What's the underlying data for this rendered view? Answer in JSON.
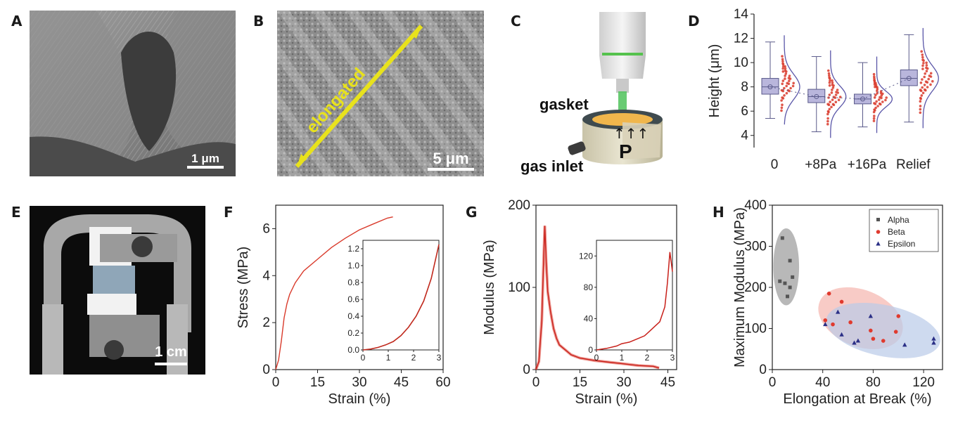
{
  "panels": {
    "A": {
      "letter": "A",
      "scale_bar": "1 μm"
    },
    "B": {
      "letter": "B",
      "scale_bar": "5 μm",
      "annotation": "elongated"
    },
    "C": {
      "letter": "C",
      "labels": {
        "gasket": "gasket",
        "gas_inlet": "gas inlet",
        "pressure": "P"
      }
    },
    "D": {
      "letter": "D"
    },
    "E": {
      "letter": "E",
      "scale_bar": "1 cm"
    },
    "F": {
      "letter": "F"
    },
    "G": {
      "letter": "G"
    },
    "H": {
      "letter": "H"
    }
  },
  "colors": {
    "red": "#d93a2b",
    "box": "#b9b6dc",
    "box_stroke": "#5a5a8a",
    "gray_ellipse": "#9a9a9a",
    "red_ellipse": "#f5b5ae",
    "blue_ellipse": "#b9cbe8",
    "alpha": "#555555",
    "beta": "#e03a2e",
    "epsilon": "#2a2f86"
  },
  "chart_data": [
    {
      "panel": "D",
      "type": "box",
      "ylabel": "Height (μm)",
      "ylim": [
        3,
        14
      ],
      "yticks": [
        "4",
        "6",
        "8",
        "10",
        "12",
        "14"
      ],
      "categories": [
        "0",
        "+8Pa",
        "+16Pa",
        "Relief"
      ],
      "boxes": [
        {
          "q1": 7.4,
          "median": 8.0,
          "q3": 8.7,
          "mean": 8.0,
          "whisker_low": 5.4,
          "whisker_high": 11.7
        },
        {
          "q1": 6.7,
          "median": 7.2,
          "q3": 7.8,
          "mean": 7.2,
          "whisker_low": 4.3,
          "whisker_high": 10.5
        },
        {
          "q1": 6.6,
          "median": 7.0,
          "q3": 7.4,
          "mean": 7.0,
          "whisker_low": 4.7,
          "whisker_high": 10.0
        },
        {
          "q1": 8.1,
          "median": 8.7,
          "q3": 9.4,
          "mean": 8.7,
          "whisker_low": 5.1,
          "whisker_high": 12.3
        }
      ]
    },
    {
      "panel": "F",
      "type": "line",
      "xlabel": "Strain (%)",
      "ylabel": "Stress (MPa)",
      "xlim": [
        0,
        60
      ],
      "ylim": [
        0,
        7
      ],
      "xticks": [
        "0",
        "15",
        "30",
        "45",
        "60"
      ],
      "yticks": [
        "0",
        "2",
        "4",
        "6"
      ],
      "series": [
        {
          "x": [
            0,
            1,
            2,
            3,
            4,
            5,
            7,
            10,
            15,
            20,
            25,
            30,
            35,
            40,
            42
          ],
          "y": [
            0,
            0.4,
            1.2,
            2.2,
            2.8,
            3.2,
            3.7,
            4.2,
            4.7,
            5.2,
            5.6,
            5.95,
            6.2,
            6.45,
            6.5
          ]
        }
      ],
      "inset": {
        "xlim": [
          0,
          3
        ],
        "ylim": [
          0,
          1.3
        ],
        "xticks": [
          "0",
          "1",
          "2",
          "3"
        ],
        "yticks": [
          "0.0",
          "0.2",
          "0.4",
          "0.6",
          "0.8",
          "1.0",
          "1.2"
        ],
        "x": [
          0,
          0.3,
          0.6,
          0.9,
          1.2,
          1.5,
          1.8,
          2.1,
          2.4,
          2.7,
          3.0
        ],
        "y": [
          0,
          0.01,
          0.03,
          0.06,
          0.1,
          0.17,
          0.27,
          0.4,
          0.58,
          0.85,
          1.25
        ]
      }
    },
    {
      "panel": "G",
      "type": "line",
      "xlabel": "Strain (%)",
      "ylabel": "Modulus (MPa)",
      "xlim": [
        0,
        48
      ],
      "ylim": [
        0,
        200
      ],
      "xticks": [
        "0",
        "15",
        "30",
        "45"
      ],
      "yticks": [
        "0",
        "100",
        "200"
      ],
      "series": [
        {
          "x": [
            0,
            1,
            2,
            2.5,
            3,
            3.5,
            4,
            5,
            6,
            7,
            8,
            10,
            12,
            15,
            20,
            25,
            30,
            35,
            40,
            42
          ],
          "y": [
            0,
            10,
            60,
            120,
            175,
            130,
            95,
            70,
            50,
            38,
            30,
            24,
            18,
            14,
            11,
            9,
            7,
            5,
            4,
            2
          ]
        }
      ],
      "inset": {
        "xlim": [
          0,
          3
        ],
        "ylim": [
          0,
          140
        ],
        "xticks": [
          "0",
          "1",
          "2",
          "3"
        ],
        "yticks": [
          "0",
          "40",
          "80",
          "120"
        ],
        "x": [
          0,
          0.4,
          0.8,
          1.0,
          1.3,
          1.6,
          1.9,
          2.1,
          2.3,
          2.5,
          2.7,
          2.8,
          2.9,
          3.0
        ],
        "y": [
          0,
          2,
          5,
          8,
          10,
          14,
          18,
          24,
          30,
          36,
          55,
          85,
          125,
          100
        ]
      }
    },
    {
      "panel": "H",
      "type": "scatter",
      "xlabel": "Elongation at Break (%)",
      "ylabel": "Maximum Modulus (MPa)",
      "xlim": [
        0,
        135
      ],
      "ylim": [
        0,
        400
      ],
      "xticks": [
        "0",
        "40",
        "80",
        "120"
      ],
      "yticks": [
        "0",
        "100",
        "200",
        "300",
        "400"
      ],
      "legend_position": "top-right",
      "series": [
        {
          "name": "Alpha",
          "points": [
            [
              8,
              320
            ],
            [
              14,
              265
            ],
            [
              6,
              215
            ],
            [
              10,
              210
            ],
            [
              16,
              225
            ],
            [
              12,
              178
            ],
            [
              14,
              200
            ]
          ]
        },
        {
          "name": "Beta",
          "points": [
            [
              45,
              185
            ],
            [
              55,
              165
            ],
            [
              42,
              120
            ],
            [
              48,
              110
            ],
            [
              62,
              115
            ],
            [
              78,
              95
            ],
            [
              88,
              70
            ],
            [
              80,
              75
            ],
            [
              100,
              130
            ],
            [
              98,
              92
            ]
          ]
        },
        {
          "name": "Epsilon",
          "points": [
            [
              52,
              140
            ],
            [
              42,
              110
            ],
            [
              55,
              85
            ],
            [
              65,
              65
            ],
            [
              78,
              130
            ],
            [
              105,
              60
            ],
            [
              128,
              65
            ],
            [
              128,
              75
            ],
            [
              68,
              70
            ]
          ]
        }
      ]
    }
  ]
}
